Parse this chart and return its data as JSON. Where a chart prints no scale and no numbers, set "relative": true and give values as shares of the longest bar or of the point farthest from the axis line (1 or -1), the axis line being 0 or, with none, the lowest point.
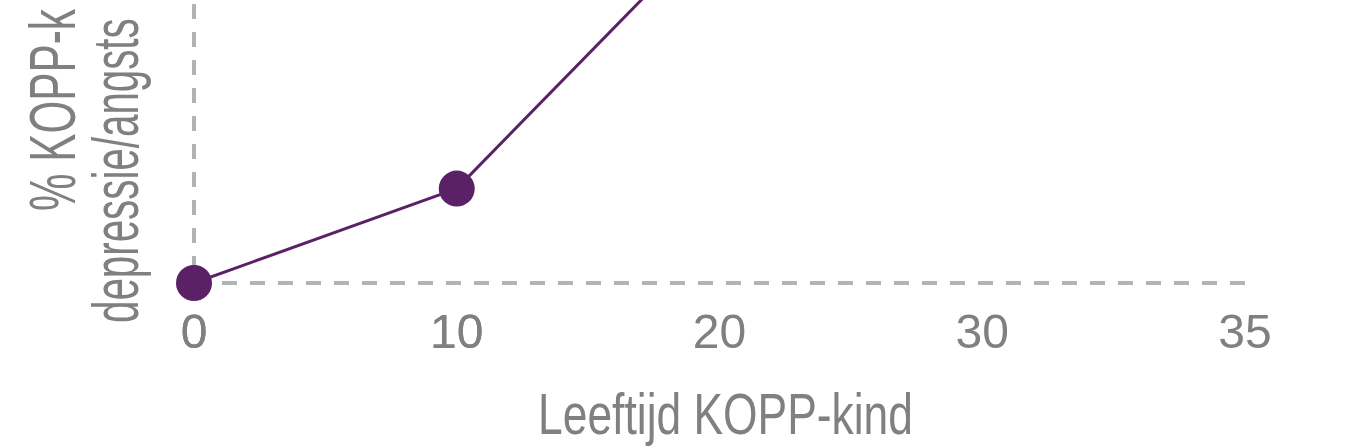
{
  "chart_data": {
    "type": "line",
    "xlabel": "Leeftijd KOPP-kind",
    "ylabel": "% KOPP-k\ndepressie/angsts",
    "relative": true,
    "categories": [
      "0",
      "10",
      "20",
      "30",
      "35"
    ],
    "line_style": "solid",
    "series": [
      {
        "color": "#5a2166",
        "values": [
          0,
          0.26,
          1,
          null,
          null
        ],
        "marker": "none"
      },
      {
        "type": "scatter",
        "color": "#5a2166",
        "values": [
          0,
          0.26,
          null,
          null,
          null
        ],
        "marker": "circle"
      }
    ]
  }
}
